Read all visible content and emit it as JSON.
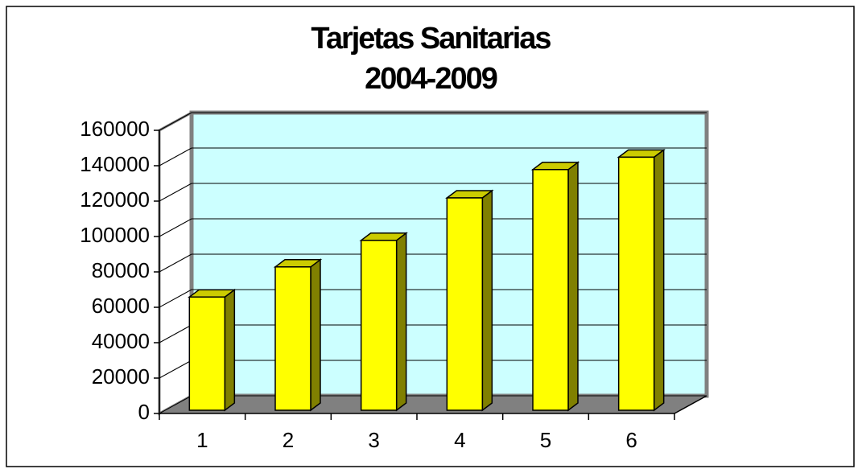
{
  "chart_data": {
    "type": "bar3d",
    "title": [
      "Tarjetas Sanitarias",
      "2004-2009"
    ],
    "categories": [
      "1",
      "2",
      "3",
      "4",
      "5",
      "6"
    ],
    "values": [
      64000,
      81000,
      96000,
      120000,
      136000,
      143000
    ],
    "color": "#ffff00",
    "ylim": [
      0,
      160000
    ],
    "yticks": [
      0,
      20000,
      40000,
      60000,
      80000,
      100000,
      120000,
      140000,
      160000
    ],
    "grid": true
  }
}
